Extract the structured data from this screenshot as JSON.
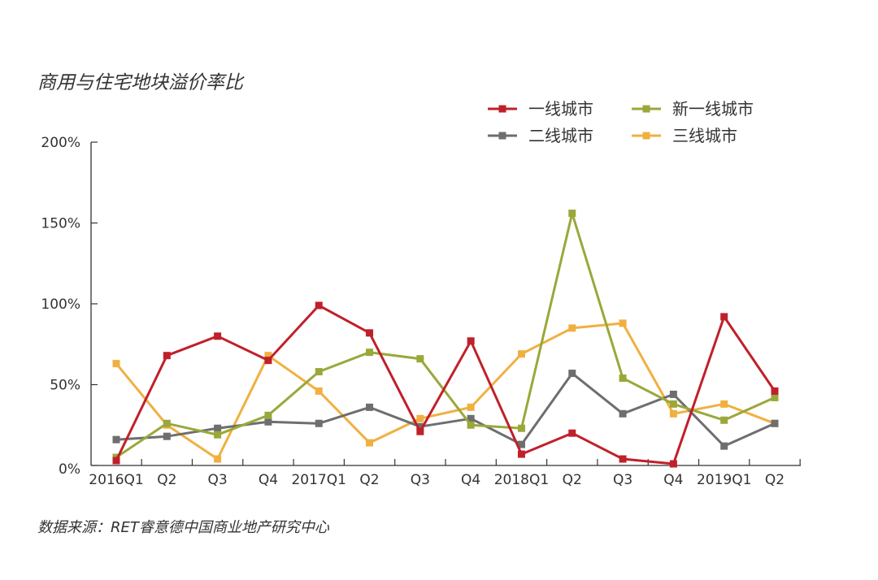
{
  "title": "商用与住宅地块溢价率比",
  "source": "数据来源：RET睿意德中国商业地产研究中心",
  "chart_data": {
    "type": "line",
    "categories": [
      "2016Q1",
      "Q2",
      "Q3",
      "Q4",
      "2017Q1",
      "Q2",
      "Q3",
      "Q4",
      "2018Q1",
      "Q2",
      "Q3",
      "Q4",
      "2019Q1",
      "Q2"
    ],
    "y_tick_labels": [
      "0%",
      "50%",
      "100%",
      "150%",
      "200%"
    ],
    "ylim": [
      0,
      200
    ],
    "y_unit": "%",
    "grid": false,
    "legend_position": "top-right",
    "series": [
      {
        "name": "一线城市",
        "color": "#c0202a",
        "values": [
          3,
          68,
          80,
          65,
          99,
          82,
          21,
          77,
          7,
          20,
          4,
          1,
          92,
          46
        ]
      },
      {
        "name": "新一线城市",
        "color": "#9aa83a",
        "values": [
          5,
          26,
          19,
          31,
          58,
          70,
          66,
          25,
          23,
          156,
          54,
          38,
          28,
          42
        ]
      },
      {
        "name": "二线城市",
        "color": "#6e6e6e",
        "values": [
          16,
          18,
          23,
          27,
          26,
          36,
          24,
          29,
          13,
          57,
          32,
          44,
          12,
          26
        ]
      },
      {
        "name": "三线城市",
        "color": "#f0b040",
        "values": [
          63,
          25,
          4,
          68,
          46,
          14,
          29,
          36,
          69,
          85,
          88,
          32,
          38,
          26
        ]
      }
    ]
  }
}
